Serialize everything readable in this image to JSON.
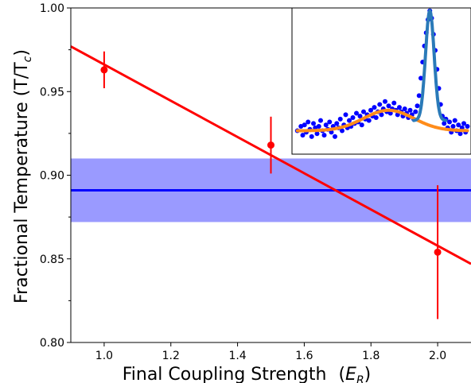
{
  "chart_data": {
    "type": "scatter",
    "title": "",
    "xlabel": "Final Coupling Strength",
    "xlabel_unit_base": "E",
    "xlabel_unit_sub": "R",
    "ylabel": "Fractional Temperature (T/T",
    "ylabel_sub": "c",
    "ylabel_close": ")",
    "xlim": [
      0.9,
      2.1
    ],
    "ylim": [
      0.8,
      1.0
    ],
    "xticks": [
      {
        "value": 1.0,
        "label": "1.0"
      },
      {
        "value": 1.2,
        "label": "1.2"
      },
      {
        "value": 1.4,
        "label": "1.4"
      },
      {
        "value": 1.6,
        "label": "1.6"
      },
      {
        "value": 1.8,
        "label": "1.8"
      },
      {
        "value": 2.0,
        "label": "2.0"
      }
    ],
    "yticks": [
      {
        "value": 0.8,
        "label": "0.80"
      },
      {
        "value": 0.85,
        "label": "0.85"
      },
      {
        "value": 0.9,
        "label": "0.90"
      },
      {
        "value": 0.95,
        "label": "0.95"
      },
      {
        "value": 1.0,
        "label": "1.00"
      }
    ],
    "yminor": [
      0.825,
      0.875,
      0.925,
      0.975
    ],
    "grid": false,
    "series": [
      {
        "kind": "errorbar-points",
        "color": "#ff0000",
        "points": [
          {
            "x": 1.0,
            "y": 0.963,
            "err": 0.011
          },
          {
            "x": 1.5,
            "y": 0.918,
            "err": 0.017
          },
          {
            "x": 2.0,
            "y": 0.854,
            "err": 0.04
          }
        ]
      },
      {
        "kind": "fit-line",
        "color": "#ff0000",
        "x": [
          0.9,
          2.1
        ],
        "y": [
          0.977,
          0.847
        ]
      },
      {
        "kind": "horizontal-band",
        "color": "#0000ff",
        "fill": "#9a9aff",
        "center": 0.891,
        "lower": 0.872,
        "upper": 0.91
      }
    ],
    "inset": {
      "type": "scatter",
      "axes_labels": false,
      "ticks": false,
      "xlim": [
        0,
        100
      ],
      "ylim": [
        0,
        1
      ],
      "points_color": "#0000ff",
      "points": [
        [
          3,
          0.16
        ],
        [
          5,
          0.19
        ],
        [
          6,
          0.13
        ],
        [
          7,
          0.2
        ],
        [
          8,
          0.15
        ],
        [
          9,
          0.22
        ],
        [
          10,
          0.17
        ],
        [
          11,
          0.12
        ],
        [
          12,
          0.21
        ],
        [
          13,
          0.18
        ],
        [
          14,
          0.14
        ],
        [
          15,
          0.19
        ],
        [
          16,
          0.23
        ],
        [
          17,
          0.16
        ],
        [
          18,
          0.13
        ],
        [
          19,
          0.2
        ],
        [
          20,
          0.17
        ],
        [
          21,
          0.22
        ],
        [
          22,
          0.15
        ],
        [
          23,
          0.19
        ],
        [
          24,
          0.12
        ],
        [
          25,
          0.21
        ],
        [
          26,
          0.18
        ],
        [
          27,
          0.24
        ],
        [
          28,
          0.16
        ],
        [
          29,
          0.2
        ],
        [
          30,
          0.27
        ],
        [
          31,
          0.18
        ],
        [
          32,
          0.23
        ],
        [
          33,
          0.19
        ],
        [
          34,
          0.25
        ],
        [
          35,
          0.21
        ],
        [
          36,
          0.28
        ],
        [
          37,
          0.22
        ],
        [
          38,
          0.26
        ],
        [
          39,
          0.2
        ],
        [
          40,
          0.29
        ],
        [
          41,
          0.24
        ],
        [
          42,
          0.27
        ],
        [
          43,
          0.23
        ],
        [
          44,
          0.3
        ],
        [
          45,
          0.26
        ],
        [
          46,
          0.32
        ],
        [
          47,
          0.25
        ],
        [
          48,
          0.29
        ],
        [
          49,
          0.34
        ],
        [
          50,
          0.27
        ],
        [
          51,
          0.31
        ],
        [
          52,
          0.36
        ],
        [
          53,
          0.29
        ],
        [
          54,
          0.33
        ],
        [
          55,
          0.28
        ],
        [
          56,
          0.31
        ],
        [
          57,
          0.35
        ],
        [
          58,
          0.3
        ],
        [
          59,
          0.27
        ],
        [
          60,
          0.32
        ],
        [
          61,
          0.29
        ],
        [
          62,
          0.26
        ],
        [
          63,
          0.31
        ],
        [
          64,
          0.28
        ],
        [
          65,
          0.25
        ],
        [
          66,
          0.3
        ],
        [
          67,
          0.27
        ],
        [
          68,
          0.24
        ],
        [
          69,
          0.29
        ],
        [
          70,
          0.33
        ],
        [
          71,
          0.4
        ],
        [
          72,
          0.52
        ],
        [
          73,
          0.63
        ],
        [
          74,
          0.74
        ],
        [
          75,
          0.83
        ],
        [
          76,
          0.92
        ],
        [
          77,
          0.98
        ],
        [
          78,
          0.93
        ],
        [
          79,
          0.82
        ],
        [
          80,
          0.71
        ],
        [
          81,
          0.58
        ],
        [
          82,
          0.45
        ],
        [
          83,
          0.34
        ],
        [
          84,
          0.26
        ],
        [
          85,
          0.21
        ],
        [
          86,
          0.24
        ],
        [
          87,
          0.18
        ],
        [
          88,
          0.22
        ],
        [
          89,
          0.15
        ],
        [
          90,
          0.19
        ],
        [
          91,
          0.23
        ],
        [
          92,
          0.16
        ],
        [
          93,
          0.2
        ],
        [
          94,
          0.14
        ],
        [
          95,
          0.18
        ],
        [
          96,
          0.21
        ],
        [
          97,
          0.15
        ],
        [
          98,
          0.19
        ]
      ],
      "curves": [
        {
          "name": "",
          "color": "#ff8c1a",
          "kind": "broad-gaussian",
          "baseline": 0.16,
          "amp": 0.14,
          "center": 54,
          "sigma": 14
        },
        {
          "name": "",
          "color": "#2a7ab8",
          "kind": "narrow-gaussian",
          "baseline": 0.23,
          "amp": 0.75,
          "center": 77,
          "sigma": 2.4,
          "xmin": 68,
          "xmax": 86
        }
      ]
    }
  }
}
